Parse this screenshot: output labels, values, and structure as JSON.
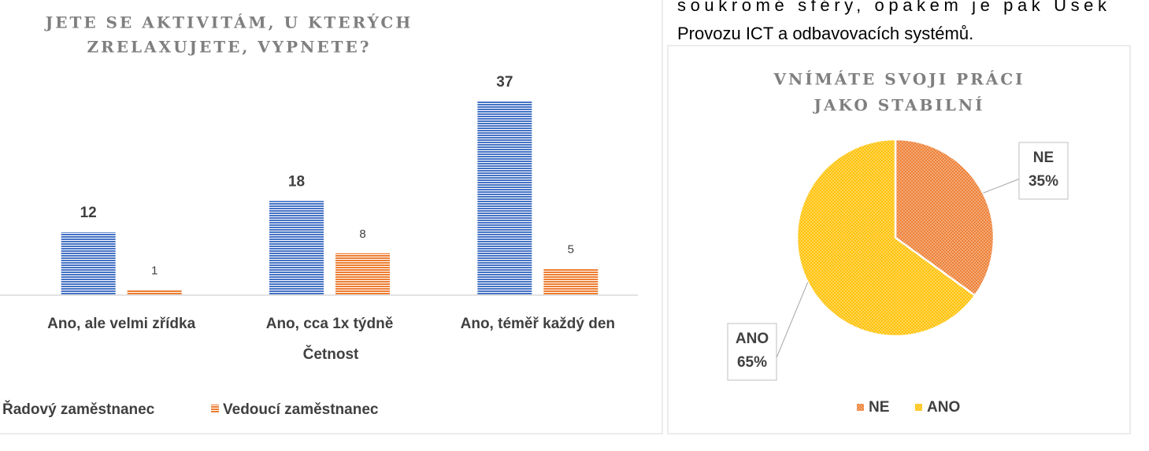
{
  "paragraph": [
    "soukromé sféry, opakem je pak Úsek",
    "Provozu ICT a odbavovacích systémů."
  ],
  "chart_data": [
    {
      "type": "bar",
      "title": [
        "JETE SE AKTIVITÁM, U KTERÝCH",
        "ZRELAXUJETE, VYPNETE?"
      ],
      "x_label": "Četnost",
      "categories": [
        "Ano, ale velmi zřídka",
        "Ano, cca 1x týdně",
        "Ano, téměř každý den"
      ],
      "series": [
        {
          "name": "Řadový zaměstnanec",
          "color": "#4472c4",
          "values": [
            12,
            18,
            37
          ]
        },
        {
          "name": "Vedoucí zaměstnanec",
          "color": "#ed7d31",
          "values": [
            1,
            8,
            5
          ]
        }
      ],
      "ylim": [
        0,
        40
      ]
    },
    {
      "type": "pie",
      "title": [
        "VNÍMÁTE SVOJI PRÁCI",
        "JAKO STABILNÍ"
      ],
      "categories": [
        "NE",
        "ANO"
      ],
      "values": [
        35,
        65
      ],
      "value_labels": [
        "35%",
        "65%"
      ],
      "colors": [
        "#ed7d31",
        "#ffc000"
      ]
    }
  ]
}
